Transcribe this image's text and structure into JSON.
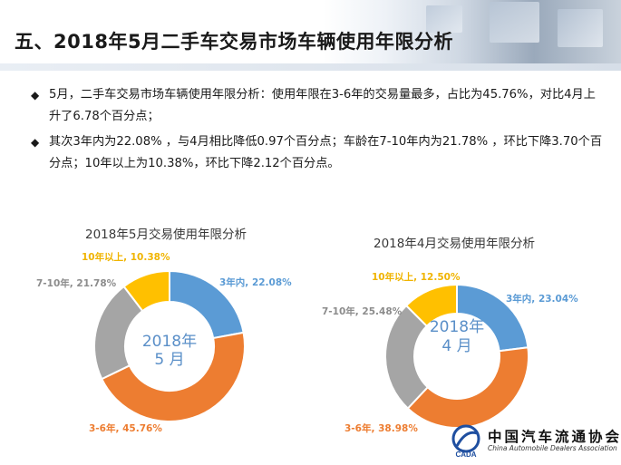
{
  "header": {
    "title": "五、2018年5月二手车交易市场车辆使用年限分析"
  },
  "bullets": [
    "5月，二手车交易市场车辆使用年限分析：使用年限在3-6年的交易量最多，占比为45.76%，对比4月上升了6.78个百分点；",
    "其次3年内为22.08% ，与4月相比降低0.97个百分点；车龄在7-10年内为21.78% ，环比下降3.70个百分点；10年以上为10.38%，环比下降2.12个百分点。"
  ],
  "bullet_symbol": "◆",
  "colors": {
    "within_3": "#5b9bd5",
    "y3_6": "#ed7d31",
    "y7_10": "#a5a5a5",
    "over_10": "#ffc000"
  },
  "chart_data": [
    {
      "type": "pie",
      "style": "donut",
      "title": "2018年5月交易使用年限分析",
      "center_label": [
        "2018年",
        "5 月"
      ],
      "categories": [
        "3年内",
        "3-6年",
        "7-10年",
        "10年以上"
      ],
      "values": [
        22.08,
        45.76,
        21.78,
        10.38
      ],
      "unit": "%",
      "data_labels": [
        "3年内, 22.08%",
        "3-6年, 45.76%",
        "7-10年, 21.78%",
        "10年以上, 10.38%"
      ]
    },
    {
      "type": "pie",
      "style": "donut",
      "title": "2018年4月交易使用年限分析",
      "center_label": [
        "2018年",
        "4 月"
      ],
      "categories": [
        "3年内",
        "3-6年",
        "7-10年",
        "10年以上"
      ],
      "values": [
        23.04,
        38.98,
        25.48,
        12.5
      ],
      "unit": "%",
      "data_labels": [
        "3年内, 23.04%",
        "3-6年, 38.98%",
        "7-10年, 25.48%",
        "10年以上, 12.50%"
      ]
    }
  ],
  "logo": {
    "name": "中国汽车流通协会",
    "english": "China Automobile Dealers Association",
    "abbr": "CADA"
  }
}
